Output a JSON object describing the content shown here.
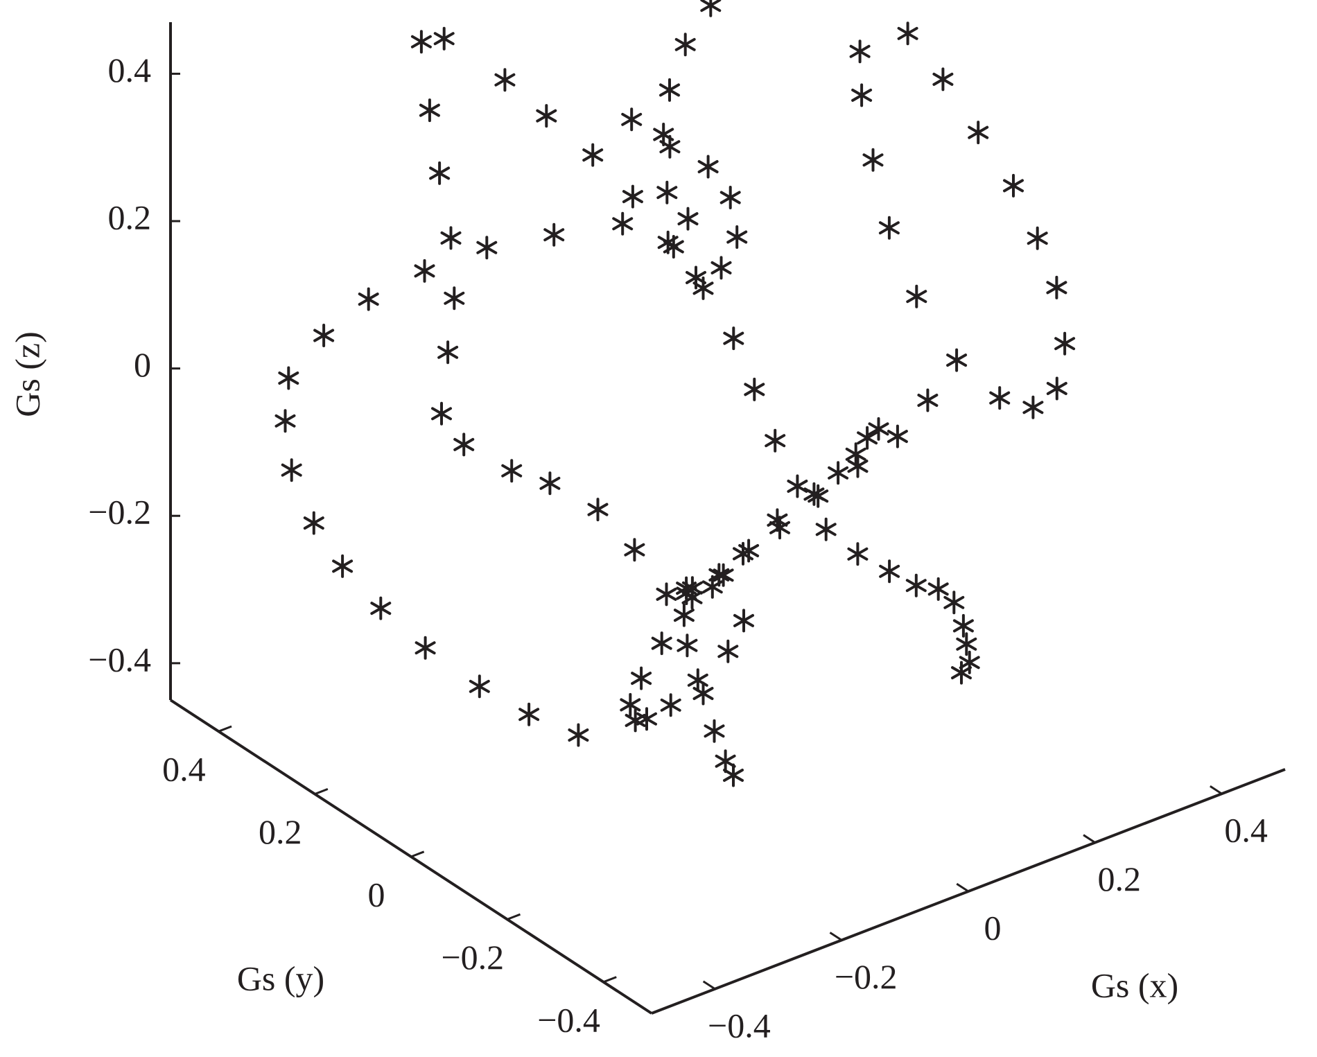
{
  "chart_data": {
    "type": "scatter3d",
    "marker": "asterisk",
    "color": "#231f20",
    "grid": false,
    "axes": {
      "x": {
        "label": "Gs (x)",
        "ticks": [
          -0.4,
          -0.2,
          0,
          0.2,
          0.4
        ],
        "tick_labels": [
          "−0.4",
          "−0.2",
          "0",
          "0.2",
          "0.4"
        ],
        "lim": [
          -0.5,
          0.5
        ]
      },
      "y": {
        "label": "Gs (y)",
        "ticks": [
          -0.4,
          -0.2,
          0,
          0.2,
          0.4
        ],
        "tick_labels": [
          "−0.4",
          "−0.2",
          "0",
          "0.2",
          "0.4"
        ],
        "lim": [
          -0.5,
          0.5
        ]
      },
      "z": {
        "label": "Gs (z)",
        "ticks": [
          -0.4,
          -0.2,
          0,
          0.2,
          0.4
        ],
        "tick_labels": [
          "−0.4",
          "−0.2",
          "0",
          "0.2",
          "0.4"
        ],
        "lim": [
          -0.45,
          0.47
        ]
      }
    },
    "curves": [
      {
        "points": [
          [
            -0.22,
            0.3,
            0.44
          ],
          [
            -0.2,
            0.2,
            0.42
          ],
          [
            -0.18,
            0.14,
            0.39
          ],
          [
            -0.16,
            0.07,
            0.36
          ],
          [
            -0.15,
            0.0,
            0.33
          ],
          [
            -0.14,
            -0.06,
            0.29
          ],
          [
            -0.13,
            -0.12,
            0.25
          ],
          [
            -0.12,
            -0.17,
            0.2
          ],
          [
            -0.11,
            -0.2,
            0.14
          ],
          [
            -0.1,
            -0.23,
            0.08
          ],
          [
            -0.08,
            -0.25,
            0.02
          ],
          [
            -0.05,
            -0.27,
            -0.04
          ],
          [
            0.0,
            -0.27,
            -0.09
          ],
          [
            0.05,
            -0.27,
            -0.13
          ],
          [
            0.1,
            -0.26,
            -0.17
          ],
          [
            0.15,
            -0.24,
            -0.2
          ],
          [
            0.19,
            -0.22,
            -0.24
          ],
          [
            0.22,
            -0.2,
            -0.29
          ],
          [
            0.24,
            -0.18,
            -0.33
          ],
          [
            0.26,
            -0.16,
            -0.37
          ],
          [
            0.27,
            -0.13,
            -0.4
          ]
        ]
      },
      {
        "points": [
          [
            -0.23,
            -0.22,
            0.42
          ],
          [
            -0.28,
            -0.15,
            0.4
          ],
          [
            -0.32,
            -0.06,
            0.36
          ],
          [
            -0.35,
            0.04,
            0.31
          ],
          [
            -0.38,
            0.13,
            0.25
          ],
          [
            -0.4,
            0.22,
            0.18
          ],
          [
            -0.41,
            0.3,
            0.1
          ],
          [
            -0.42,
            0.36,
            0.02
          ],
          [
            -0.41,
            0.38,
            -0.05
          ],
          [
            -0.4,
            0.38,
            -0.12
          ],
          [
            -0.38,
            0.36,
            -0.19
          ],
          [
            -0.35,
            0.34,
            -0.25
          ],
          [
            -0.32,
            0.3,
            -0.3
          ],
          [
            -0.28,
            0.26,
            -0.35
          ],
          [
            -0.24,
            0.2,
            -0.39
          ],
          [
            -0.2,
            0.15,
            -0.42
          ],
          [
            -0.16,
            0.1,
            -0.44
          ]
        ]
      },
      {
        "points": [
          [
            -0.18,
            0.4,
            0.38
          ],
          [
            -0.22,
            0.33,
            0.33
          ],
          [
            -0.25,
            0.27,
            0.28
          ],
          [
            -0.27,
            0.22,
            0.22
          ],
          [
            -0.28,
            0.2,
            0.15
          ],
          [
            -0.29,
            0.2,
            0.08
          ],
          [
            -0.3,
            0.2,
            0.0
          ],
          [
            -0.28,
            0.18,
            -0.04
          ],
          [
            -0.25,
            0.12,
            -0.06
          ],
          [
            -0.22,
            0.08,
            -0.07
          ],
          [
            -0.19,
            0.02,
            -0.09
          ],
          [
            -0.17,
            -0.03,
            -0.13
          ],
          [
            -0.15,
            -0.07,
            -0.18
          ],
          [
            -0.14,
            -0.1,
            -0.24
          ],
          [
            -0.13,
            -0.12,
            -0.3
          ],
          [
            -0.12,
            -0.13,
            -0.35
          ],
          [
            -0.11,
            -0.14,
            -0.39
          ],
          [
            -0.09,
            -0.13,
            -0.42
          ]
        ]
      },
      {
        "points": [
          [
            0.36,
            0.1,
            0.34
          ],
          [
            0.37,
            0.04,
            0.3
          ],
          [
            0.38,
            -0.02,
            0.25
          ],
          [
            0.39,
            -0.08,
            0.2
          ],
          [
            0.39,
            -0.13,
            0.15
          ],
          [
            0.39,
            -0.17,
            0.1
          ],
          [
            0.38,
            -0.2,
            0.04
          ],
          [
            0.36,
            -0.21,
            -0.01
          ],
          [
            0.33,
            -0.2,
            -0.03
          ],
          [
            0.3,
            -0.17,
            -0.02
          ],
          [
            0.27,
            -0.12,
            0.02
          ],
          [
            0.26,
            -0.05,
            0.08
          ],
          [
            0.27,
            0.02,
            0.14
          ],
          [
            0.29,
            0.08,
            0.2
          ],
          [
            0.31,
            0.13,
            0.26
          ],
          [
            0.33,
            0.16,
            0.3
          ]
        ]
      },
      {
        "points": [
          [
            0.0,
            0.2,
            0.3
          ],
          [
            0.03,
            0.16,
            0.27
          ],
          [
            0.06,
            0.12,
            0.25
          ],
          [
            0.08,
            0.1,
            0.21
          ],
          [
            0.06,
            0.06,
            0.18
          ],
          [
            0.02,
            0.04,
            0.16
          ],
          [
            -0.02,
            0.04,
            0.16
          ],
          [
            -0.04,
            0.06,
            0.2
          ],
          [
            -0.02,
            0.1,
            0.25
          ],
          [
            0.02,
            0.16,
            0.29
          ],
          [
            0.06,
            0.2,
            0.32
          ],
          [
            0.1,
            0.22,
            0.36
          ],
          [
            0.14,
            0.22,
            0.4
          ],
          [
            0.18,
            0.2,
            0.43
          ],
          [
            0.21,
            0.16,
            0.45
          ]
        ]
      },
      {
        "points": [
          [
            0.2,
            -0.05,
            -0.08
          ],
          [
            0.22,
            0.0,
            -0.12
          ],
          [
            0.24,
            0.05,
            -0.17
          ],
          [
            0.25,
            0.1,
            -0.22
          ],
          [
            0.25,
            0.15,
            -0.27
          ],
          [
            0.23,
            0.2,
            -0.32
          ],
          [
            0.2,
            0.22,
            -0.36
          ],
          [
            0.16,
            0.22,
            -0.38
          ],
          [
            0.12,
            0.19,
            -0.37
          ],
          [
            0.1,
            0.15,
            -0.33
          ],
          [
            0.1,
            0.1,
            -0.28
          ],
          [
            0.12,
            0.05,
            -0.23
          ],
          [
            0.15,
            0.01,
            -0.18
          ],
          [
            0.19,
            -0.02,
            -0.14
          ],
          [
            0.23,
            -0.05,
            -0.1
          ],
          [
            0.27,
            -0.06,
            -0.06
          ]
        ]
      },
      {
        "points": [
          [
            -0.05,
            0.02,
            -0.25
          ],
          [
            -0.02,
            0.06,
            -0.27
          ],
          [
            0.02,
            0.1,
            -0.3
          ],
          [
            0.05,
            0.14,
            -0.34
          ],
          [
            0.06,
            0.17,
            -0.38
          ],
          [
            0.04,
            0.19,
            -0.42
          ],
          [
            0.0,
            0.18,
            -0.45
          ],
          [
            -0.04,
            0.15,
            -0.46
          ],
          [
            -0.07,
            0.1,
            -0.45
          ],
          [
            -0.09,
            0.05,
            -0.42
          ],
          [
            -0.09,
            0.0,
            -0.38
          ],
          [
            -0.07,
            -0.03,
            -0.34
          ],
          [
            -0.03,
            -0.04,
            -0.31
          ],
          [
            0.01,
            -0.02,
            -0.29
          ]
        ]
      }
    ]
  }
}
